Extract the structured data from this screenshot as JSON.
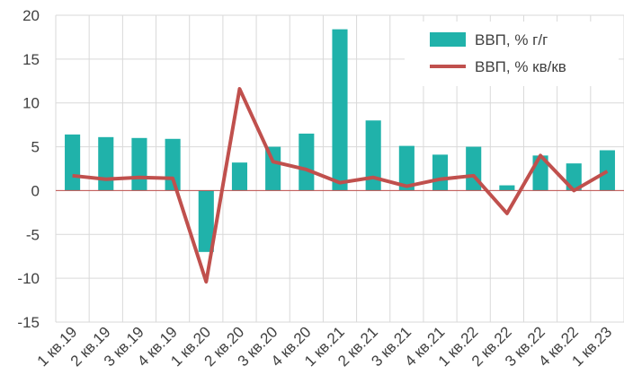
{
  "chart_data": {
    "type": "bar_line",
    "categories": [
      "1 кв.19",
      "2 кв.19",
      "3 кв.19",
      "4 кв.19",
      "1 кв.20",
      "2 кв.20",
      "3 кв.20",
      "4 кв.20",
      "1 кв.21",
      "2 кв.21",
      "3 кв.21",
      "4 кв.21",
      "1 кв.22",
      "2 кв.22",
      "3 кв.22",
      "4 кв.22",
      "1 кв.23"
    ],
    "series": [
      {
        "name": "ВВП, % г/г",
        "type": "bar",
        "color": "#20b2aa",
        "values": [
          6.4,
          6.1,
          6.0,
          5.9,
          -7.0,
          3.2,
          5.0,
          6.5,
          18.4,
          8.0,
          5.1,
          4.1,
          5.0,
          0.6,
          4.0,
          3.1,
          4.6
        ]
      },
      {
        "name": "ВВП, % кв/кв",
        "type": "line",
        "color": "#c0504d",
        "values": [
          1.7,
          1.3,
          1.5,
          1.4,
          -10.4,
          11.6,
          3.3,
          2.4,
          0.9,
          1.5,
          0.5,
          1.3,
          1.7,
          -2.6,
          4.0,
          0.0,
          2.2
        ]
      }
    ],
    "ylim": [
      -15,
      20
    ],
    "yticks": [
      -15,
      -10,
      -5,
      0,
      5,
      10,
      15,
      20
    ],
    "grid": true,
    "legend": "upper right"
  }
}
